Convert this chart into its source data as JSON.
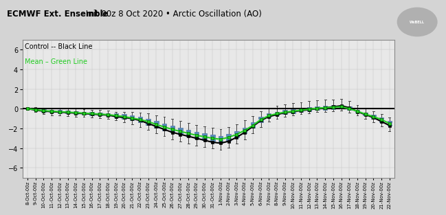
{
  "title_bold": "ECMWF Ext. Ensemble",
  "title_regular": " Init 00z 8 Oct 2020 • Arctic Oscillation (AO)",
  "legend_line1": "Control -- Black Line",
  "legend_line2": "Mean – Green Line",
  "ylim": [
    -7,
    7
  ],
  "yticks": [
    -6,
    -4,
    -2,
    0,
    2,
    4,
    6
  ],
  "bg_color": "#d4d4d4",
  "plot_bg_color": "#e8e8e8",
  "box_fill_color": "#5b8ec4",
  "box_edge_color": "#3a6090",
  "whisker_color": "#555555",
  "control_color": "#000000",
  "mean_color": "#22cc22",
  "zero_line_color": "#000000",
  "n_days": 46,
  "control_values": [
    0.0,
    -0.15,
    -0.25,
    -0.3,
    -0.35,
    -0.4,
    -0.45,
    -0.5,
    -0.55,
    -0.6,
    -0.65,
    -0.8,
    -0.9,
    -1.0,
    -1.2,
    -1.5,
    -1.8,
    -2.1,
    -2.4,
    -2.6,
    -2.8,
    -3.0,
    -3.2,
    -3.4,
    -3.5,
    -3.3,
    -2.9,
    -2.4,
    -1.8,
    -1.2,
    -0.8,
    -0.6,
    -0.4,
    -0.3,
    -0.2,
    -0.1,
    0.0,
    0.1,
    0.2,
    0.3,
    0.1,
    -0.3,
    -0.6,
    -0.9,
    -1.3,
    -1.7
  ],
  "mean_values": [
    0.0,
    -0.1,
    -0.2,
    -0.25,
    -0.3,
    -0.35,
    -0.4,
    -0.45,
    -0.5,
    -0.55,
    -0.6,
    -0.7,
    -0.8,
    -0.95,
    -1.1,
    -1.3,
    -1.6,
    -1.85,
    -2.1,
    -2.3,
    -2.5,
    -2.7,
    -2.85,
    -3.0,
    -3.1,
    -2.9,
    -2.6,
    -2.2,
    -1.7,
    -1.1,
    -0.7,
    -0.5,
    -0.35,
    -0.25,
    -0.15,
    -0.05,
    0.05,
    0.1,
    0.15,
    0.2,
    0.0,
    -0.25,
    -0.55,
    -0.8,
    -1.1,
    -1.5
  ],
  "box_q1": [
    -0.05,
    -0.2,
    -0.35,
    -0.4,
    -0.45,
    -0.5,
    -0.55,
    -0.6,
    -0.65,
    -0.7,
    -0.75,
    -0.9,
    -1.05,
    -1.2,
    -1.4,
    -1.65,
    -1.95,
    -2.2,
    -2.45,
    -2.65,
    -2.85,
    -3.05,
    -3.2,
    -3.35,
    -3.45,
    -3.25,
    -2.9,
    -2.5,
    -1.95,
    -1.35,
    -0.9,
    -0.7,
    -0.55,
    -0.45,
    -0.35,
    -0.25,
    -0.15,
    -0.1,
    -0.05,
    0.0,
    -0.15,
    -0.4,
    -0.7,
    -1.0,
    -1.35,
    -1.75
  ],
  "box_q3": [
    0.05,
    0.0,
    -0.05,
    -0.1,
    -0.15,
    -0.2,
    -0.25,
    -0.3,
    -0.35,
    -0.4,
    -0.45,
    -0.5,
    -0.55,
    -0.65,
    -0.8,
    -1.0,
    -1.25,
    -1.5,
    -1.75,
    -1.95,
    -2.15,
    -2.35,
    -2.5,
    -2.65,
    -2.75,
    -2.55,
    -2.25,
    -1.9,
    -1.4,
    -0.85,
    -0.5,
    -0.3,
    -0.15,
    -0.05,
    0.05,
    0.15,
    0.25,
    0.3,
    0.35,
    0.4,
    0.2,
    -0.1,
    -0.4,
    -0.6,
    -0.9,
    -1.25
  ],
  "whisker_low": [
    -0.1,
    -0.35,
    -0.55,
    -0.65,
    -0.7,
    -0.75,
    -0.8,
    -0.85,
    -0.9,
    -0.95,
    -1.0,
    -1.2,
    -1.4,
    -1.6,
    -1.85,
    -2.15,
    -2.5,
    -2.8,
    -3.1,
    -3.35,
    -3.55,
    -3.75,
    -3.9,
    -4.05,
    -4.15,
    -3.95,
    -3.55,
    -3.1,
    -2.5,
    -1.85,
    -1.3,
    -1.0,
    -0.8,
    -0.65,
    -0.55,
    -0.45,
    -0.35,
    -0.3,
    -0.25,
    -0.2,
    -0.4,
    -0.7,
    -1.05,
    -1.4,
    -1.8,
    -2.25
  ],
  "whisker_high": [
    0.1,
    0.15,
    0.1,
    0.1,
    0.05,
    0.05,
    0.0,
    -0.05,
    -0.1,
    -0.15,
    -0.2,
    -0.3,
    -0.3,
    -0.35,
    -0.4,
    -0.5,
    -0.65,
    -0.85,
    -1.05,
    -1.25,
    -1.45,
    -1.65,
    -1.8,
    -1.95,
    -2.05,
    -1.85,
    -1.55,
    -1.2,
    -0.75,
    -0.25,
    0.1,
    0.3,
    0.45,
    0.55,
    0.65,
    0.75,
    0.85,
    0.9,
    0.95,
    1.0,
    0.75,
    0.35,
    0.0,
    -0.25,
    -0.55,
    -0.9
  ],
  "x_labels": [
    "8-Oct-00z",
    "9-Oct-00z",
    "10-Oct-00z",
    "11-Oct-00z",
    "12-Oct-00z",
    "13-Oct-00z",
    "14-Oct-00z",
    "15-Oct-00z",
    "16-Oct-00z",
    "17-Oct-00z",
    "18-Oct-00z",
    "19-Oct-00z",
    "20-Oct-00z",
    "21-Oct-00z",
    "22-Oct-00z",
    "23-Oct-00z",
    "24-Oct-00z",
    "25-Oct-00z",
    "26-Oct-00z",
    "27-Oct-00z",
    "28-Oct-00z",
    "29-Oct-00z",
    "30-Oct-00z",
    "31-Oct-00z",
    "1-Nov-00z",
    "2-Nov-00z",
    "3-Nov-00z",
    "4-Nov-00z",
    "5-Nov-00z",
    "6-Nov-00z",
    "7-Nov-00z",
    "8-Nov-00z",
    "9-Nov-00z",
    "10-Nov-00z",
    "11-Nov-00z",
    "12-Nov-00z",
    "13-Nov-00z",
    "14-Nov-00z",
    "15-Nov-00z",
    "16-Nov-00z",
    "17-Nov-00z",
    "18-Nov-00z",
    "19-Nov-00z",
    "20-Nov-00z",
    "21-Nov-00z",
    "22-Nov-00z"
  ]
}
